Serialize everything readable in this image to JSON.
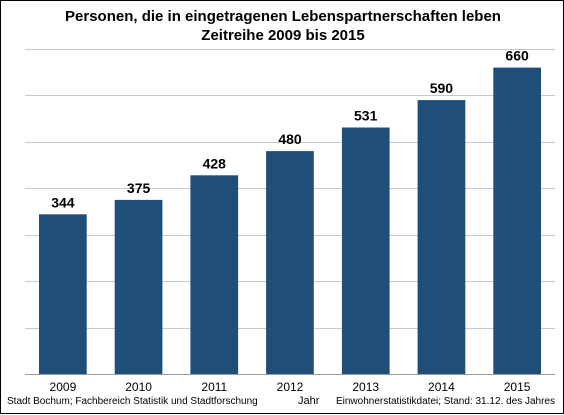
{
  "chart_data": {
    "type": "bar",
    "title": "Personen, die in eingetragenen Lebenspartnerschaften leben",
    "subtitle": "Zeitreihe 2009 bis 2015",
    "xlabel": "Jahr",
    "ylabel": "",
    "categories": [
      "2009",
      "2010",
      "2011",
      "2012",
      "2013",
      "2014",
      "2015"
    ],
    "values": [
      344,
      375,
      428,
      480,
      531,
      590,
      660
    ],
    "ylim": [
      0,
      700
    ],
    "grid": true,
    "bar_color": "#1f4e79"
  },
  "footer": {
    "source_left": "Stadt Bochum; Fachbereich Statistik und Stadtforschung",
    "source_right": "Einwohnerstatistikdatei; Stand: 31.12. des Jahres"
  }
}
